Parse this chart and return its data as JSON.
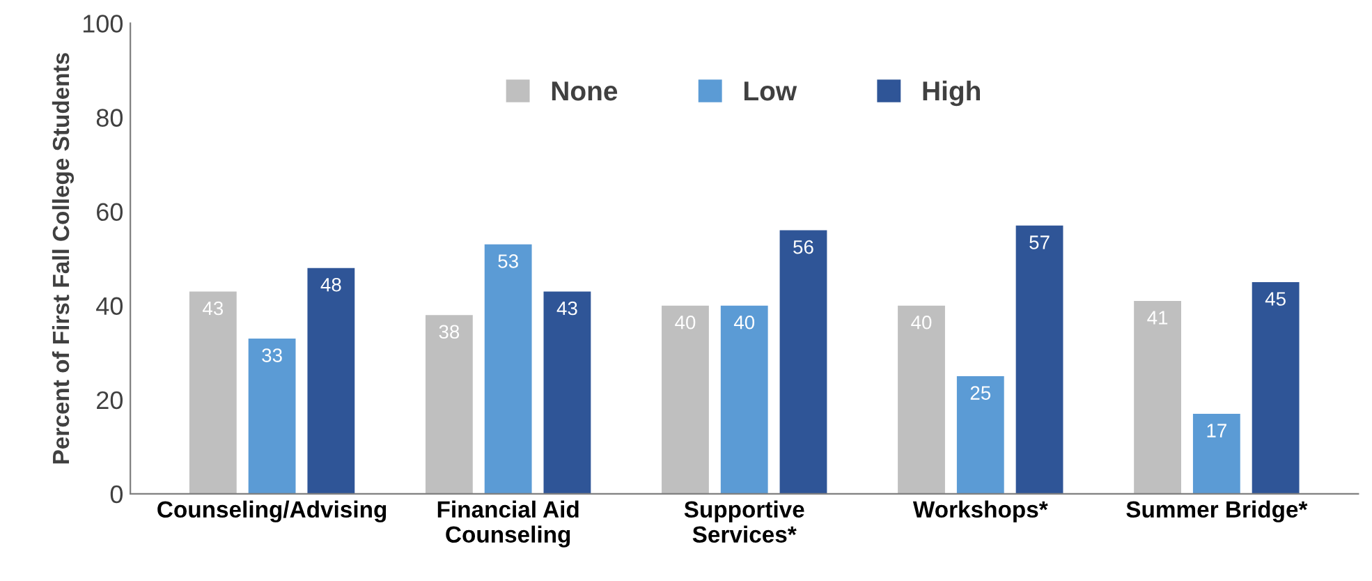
{
  "chart_data": {
    "type": "bar",
    "categories": [
      "Counseling/Advising",
      "Financial Aid\nCounseling",
      "Supportive\nServices*",
      "Workshops*",
      "Summer Bridge*"
    ],
    "ylabel": "Percent of First Fall College Students",
    "series": [
      {
        "name": "None",
        "color": "#bfbfbf",
        "values": [
          43,
          38,
          40,
          40,
          41
        ]
      },
      {
        "name": "Low",
        "color": "#5b9bd5",
        "values": [
          33,
          53,
          40,
          25,
          17
        ]
      },
      {
        "name": "High",
        "color": "#2f5597",
        "values": [
          48,
          43,
          56,
          57,
          45
        ]
      }
    ],
    "ylim": [
      0,
      100
    ],
    "yticks": [
      0,
      20,
      40,
      60,
      80,
      100
    ],
    "grid": false,
    "legend": "top",
    "data_labels": true
  }
}
